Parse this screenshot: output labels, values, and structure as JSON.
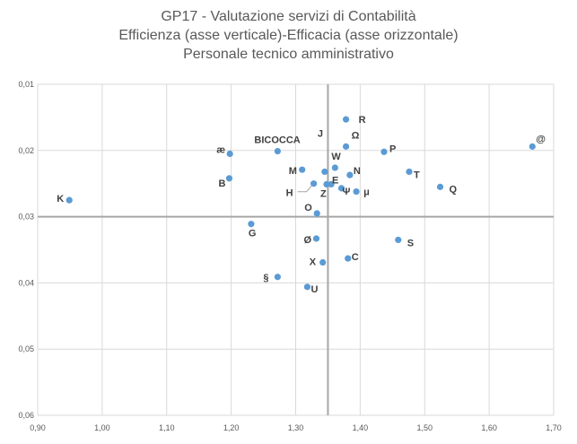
{
  "chart_data": {
    "type": "scatter",
    "title": [
      "GP17 - Valutazione servizi di Contabilità",
      "Efficienza (asse verticale)-Efficacia (asse orizzontale)",
      "Personale tecnico amministrativo"
    ],
    "xlabel": "",
    "ylabel": "",
    "xlim": [
      0.9,
      1.7
    ],
    "ylim": [
      0.01,
      0.06
    ],
    "y_reversed": true,
    "grid": true,
    "reference_lines": {
      "x": 1.35,
      "y": 0.03
    },
    "x_ticks": [
      "0,90",
      "1,00",
      "1,10",
      "1,20",
      "1,30",
      "1,40",
      "1,50",
      "1,60",
      "1,70"
    ],
    "y_ticks": [
      "0,01",
      "0,02",
      "0,03",
      "0,04",
      "0,05",
      "0,06"
    ],
    "marker_color": "#5b9bd5",
    "points": [
      {
        "label": "R",
        "x": 1.378,
        "y": 0.0153
      },
      {
        "label": "Ω",
        "x": 1.378,
        "y": 0.0194
      },
      {
        "label": "P",
        "x": 1.437,
        "y": 0.0202
      },
      {
        "label": "@",
        "x": 1.667,
        "y": 0.0194
      },
      {
        "label": "æ",
        "x": 1.198,
        "y": 0.0205
      },
      {
        "label": "BICOCCA",
        "x": 1.272,
        "y": 0.0201
      },
      {
        "label": "J",
        "x": 1.345,
        "y": 0.0232
      },
      {
        "label": "W",
        "x": 1.361,
        "y": 0.0226
      },
      {
        "label": "M",
        "x": 1.31,
        "y": 0.0229
      },
      {
        "label": "N",
        "x": 1.384,
        "y": 0.0237
      },
      {
        "label": "T",
        "x": 1.476,
        "y": 0.0232
      },
      {
        "label": "B",
        "x": 1.197,
        "y": 0.0242
      },
      {
        "label": "E",
        "x": 1.355,
        "y": 0.0251
      },
      {
        "label": "H",
        "x": 1.328,
        "y": 0.025
      },
      {
        "label": "Z",
        "x": 1.348,
        "y": 0.0251
      },
      {
        "label": "Ψ",
        "x": 1.371,
        "y": 0.0257
      },
      {
        "label": "μ",
        "x": 1.394,
        "y": 0.0262
      },
      {
        "label": "Q",
        "x": 1.524,
        "y": 0.0255
      },
      {
        "label": "K",
        "x": 0.949,
        "y": 0.0275
      },
      {
        "label": "O",
        "x": 1.333,
        "y": 0.0295
      },
      {
        "label": "G",
        "x": 1.231,
        "y": 0.0311
      },
      {
        "label": "Ø",
        "x": 1.332,
        "y": 0.0333
      },
      {
        "label": "S",
        "x": 1.459,
        "y": 0.0335
      },
      {
        "label": "C",
        "x": 1.381,
        "y": 0.0363
      },
      {
        "label": "X",
        "x": 1.342,
        "y": 0.0369
      },
      {
        "label": "§",
        "x": 1.272,
        "y": 0.0391
      },
      {
        "label": "U",
        "x": 1.318,
        "y": 0.0406
      }
    ]
  }
}
